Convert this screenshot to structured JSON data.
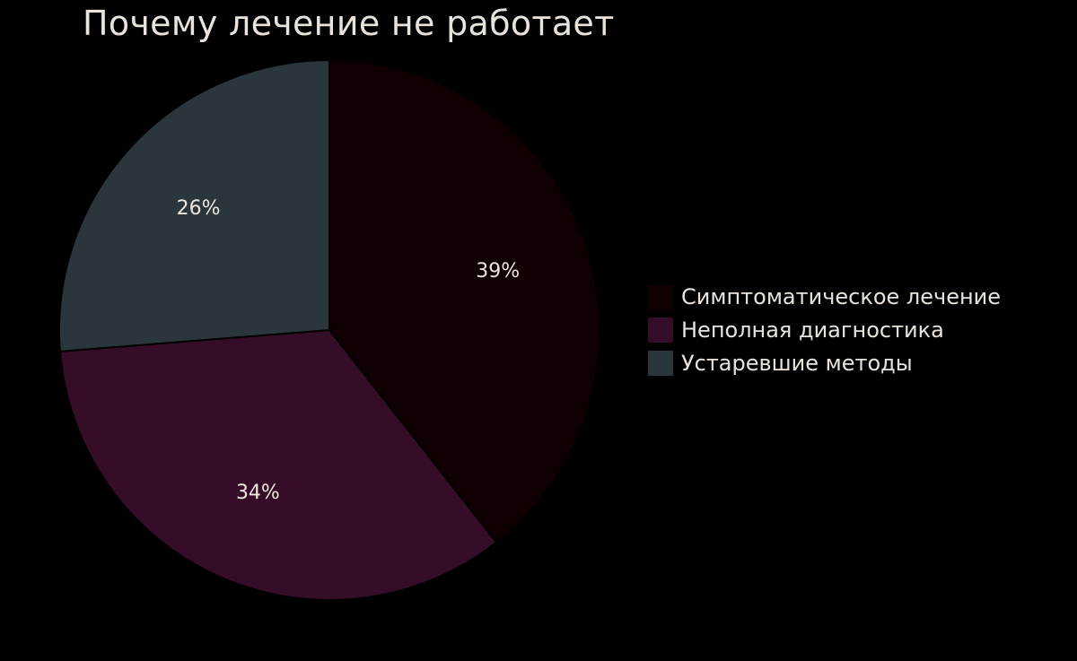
{
  "chart_data": {
    "type": "pie",
    "title": "Почему лечение не работает",
    "categories": [
      "Симптоматическое лечение",
      "Неполная диагностика",
      "Устаревшие методы"
    ],
    "values": [
      39,
      34,
      26
    ],
    "labels": [
      "39%",
      "34%",
      "26%"
    ],
    "colors": [
      "#100003",
      "#360d27",
      "#2a363c"
    ],
    "legend_position": "right"
  }
}
